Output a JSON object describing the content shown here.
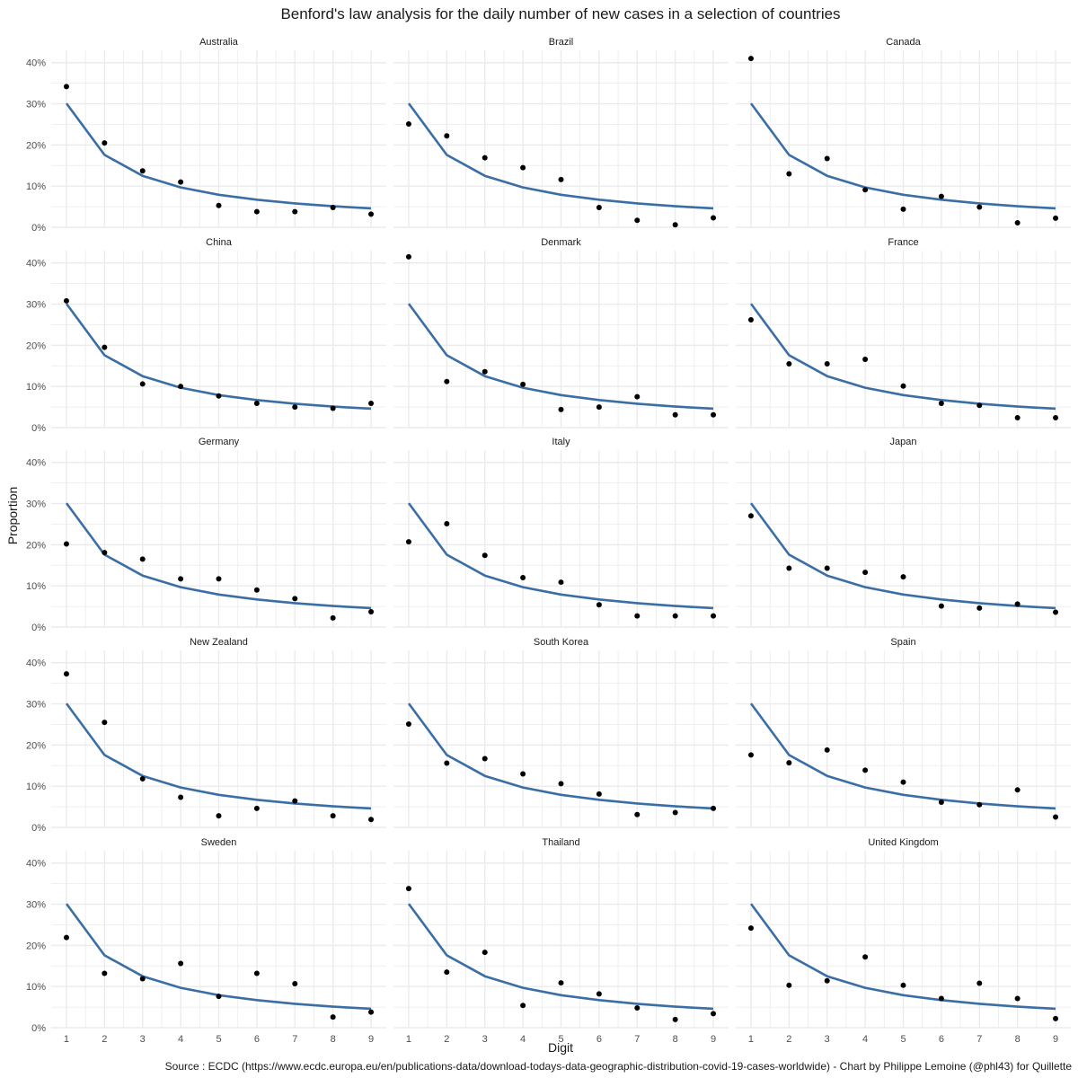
{
  "chart_data": {
    "type": "line",
    "title": "Benford's law analysis for the daily number of new cases in a selection of countries",
    "xlabel": "Digit",
    "ylabel": "Proportion",
    "caption": "Source : ECDC (https://www.ecdc.europa.eu/en/publications-data/download-todays-data-geographic-distribution-covid-19-cases-worldwide) - Chart by Philippe Lemoine (@phl43) for Quillette",
    "x": [
      1,
      2,
      3,
      4,
      5,
      6,
      7,
      8,
      9
    ],
    "x_tick_labels": [
      "1",
      "2",
      "3",
      "4",
      "5",
      "6",
      "7",
      "8",
      "9"
    ],
    "y_ticks": [
      0,
      10,
      20,
      30,
      40
    ],
    "y_tick_labels": [
      "0%",
      "10%",
      "20%",
      "30%",
      "40%"
    ],
    "ylim": [
      0,
      43
    ],
    "xlim": [
      0.6,
      9.4
    ],
    "grid": true,
    "colors": {
      "benford_line": "#3a6ea5",
      "observed_points": "#000000",
      "panel_background": "#ffffff",
      "grid": "#ebebeb"
    },
    "benford_expected": [
      30.1,
      17.6,
      12.5,
      9.7,
      7.9,
      6.7,
      5.8,
      5.1,
      4.6
    ],
    "panels": [
      {
        "name": "Australia",
        "observed": [
          34.2,
          20.5,
          13.7,
          11.0,
          5.3,
          3.8,
          3.8,
          4.8,
          3.2
        ]
      },
      {
        "name": "Brazil",
        "observed": [
          25.1,
          22.2,
          16.9,
          14.5,
          11.6,
          4.8,
          1.7,
          0.6,
          2.3
        ]
      },
      {
        "name": "Canada",
        "observed": [
          41.0,
          13.0,
          16.7,
          9.1,
          4.4,
          7.5,
          4.9,
          1.1,
          2.2
        ]
      },
      {
        "name": "China",
        "observed": [
          30.8,
          19.5,
          10.6,
          10.0,
          7.7,
          5.9,
          5.0,
          4.7,
          5.9
        ]
      },
      {
        "name": "Denmark",
        "observed": [
          41.5,
          11.2,
          13.6,
          10.5,
          4.4,
          5.0,
          7.5,
          3.1,
          3.1
        ]
      },
      {
        "name": "France",
        "observed": [
          26.2,
          15.5,
          15.5,
          16.6,
          10.1,
          5.9,
          5.4,
          2.4,
          2.4
        ]
      },
      {
        "name": "Germany",
        "observed": [
          20.2,
          18.1,
          16.5,
          11.7,
          11.7,
          9.0,
          6.9,
          2.2,
          3.7
        ]
      },
      {
        "name": "Italy",
        "observed": [
          20.7,
          25.1,
          17.4,
          12.0,
          10.9,
          5.4,
          2.7,
          2.7,
          2.7
        ]
      },
      {
        "name": "Japan",
        "observed": [
          27.0,
          14.3,
          14.3,
          13.3,
          12.2,
          5.1,
          4.6,
          5.6,
          3.6
        ]
      },
      {
        "name": "New Zealand",
        "observed": [
          37.3,
          25.5,
          11.8,
          7.3,
          2.8,
          4.6,
          6.4,
          2.8,
          1.9
        ]
      },
      {
        "name": "South Korea",
        "observed": [
          25.1,
          15.6,
          16.7,
          13.0,
          10.6,
          8.1,
          3.1,
          3.6,
          4.6
        ]
      },
      {
        "name": "Spain",
        "observed": [
          17.6,
          15.7,
          18.8,
          13.9,
          11.0,
          6.1,
          5.5,
          9.1,
          2.5
        ]
      },
      {
        "name": "Sweden",
        "observed": [
          21.9,
          13.2,
          11.9,
          15.6,
          7.6,
          13.2,
          10.7,
          2.6,
          3.8
        ]
      },
      {
        "name": "Thailand",
        "observed": [
          33.8,
          13.5,
          18.3,
          5.4,
          10.9,
          8.2,
          4.8,
          2.0,
          3.4
        ]
      },
      {
        "name": "United Kingdom",
        "observed": [
          24.2,
          10.3,
          11.4,
          17.2,
          10.3,
          7.1,
          10.8,
          7.1,
          2.2
        ]
      }
    ]
  }
}
